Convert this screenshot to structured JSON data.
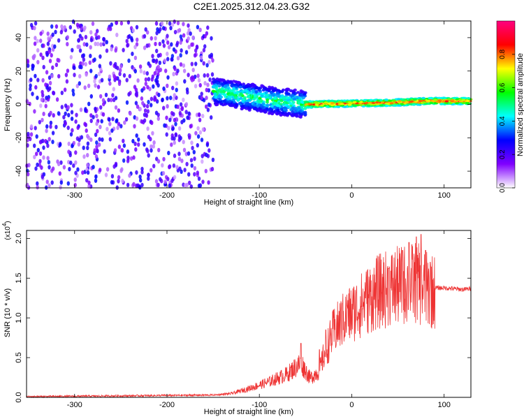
{
  "figure": {
    "title": "C2E1.2025.312.04.23.G32"
  },
  "chart_data": [
    {
      "type": "heatmap",
      "title": "",
      "xlabel": "Height of straight line (km)",
      "ylabel": "Frequency (Hz)",
      "xlim": [
        -352,
        129
      ],
      "ylim": [
        -50,
        50
      ],
      "x_ticks": [
        -300,
        -200,
        -100,
        0,
        100
      ],
      "y_ticks": [
        -40,
        -20,
        0,
        20,
        40
      ],
      "colorbar": {
        "label": "Normalized spectral amplitude",
        "range": [
          0,
          1
        ],
        "ticks": [
          "0.0",
          "0.2",
          "0.4",
          "0.6",
          "0.8"
        ],
        "colors": [
          "#ffffff",
          "#8000ff",
          "#0000ff",
          "#00ffff",
          "#00ff00",
          "#ffff00",
          "#ff0000",
          "#ff0080"
        ]
      },
      "regions": [
        {
          "x_range": [
            -352,
            -150
          ],
          "description_value": "noise",
          "amplitude": [
            0.05,
            0.3
          ],
          "freq_range": [
            -50,
            50
          ]
        },
        {
          "x_range": [
            -150,
            -50
          ],
          "amplitude": [
            0.2,
            0.6
          ],
          "center_freq": [
            8,
            5,
            2,
            0
          ],
          "spread_hz": 8
        },
        {
          "x_range": [
            -50,
            129
          ],
          "amplitude": [
            0.4,
            0.95
          ],
          "center_freq": [
            0,
            0.5,
            1,
            2,
            2
          ],
          "spread_hz": 2
        }
      ],
      "grid": false
    },
    {
      "type": "line",
      "title": "",
      "xlabel": "Height of straight line (km)",
      "ylabel": "SNR (10 * v/v)",
      "y_multiplier": "(x10",
      "y_multiplier_exp": "4",
      "xlim": [
        -352,
        129
      ],
      "ylim": [
        0,
        2.1
      ],
      "x_ticks": [
        -300,
        -200,
        -100,
        0,
        100
      ],
      "y_ticks": [
        "0.0",
        "0.5",
        "1.0",
        "1.5",
        "2.0"
      ],
      "color": "#ee3333",
      "envelope": {
        "x": [
          -352,
          -250,
          -150,
          -130,
          -110,
          -90,
          -70,
          -55,
          -50,
          -45,
          -35,
          -30,
          -20,
          -10,
          0,
          10,
          20,
          30,
          40,
          50,
          60,
          70,
          75,
          80,
          90,
          100,
          110,
          120,
          129
        ],
        "y": [
          0.01,
          0.02,
          0.03,
          0.05,
          0.12,
          0.2,
          0.3,
          0.45,
          0.35,
          0.25,
          0.35,
          0.55,
          0.85,
          1.0,
          1.1,
          1.2,
          1.3,
          1.38,
          1.42,
          1.45,
          1.48,
          1.5,
          1.45,
          1.4,
          1.38,
          1.38,
          1.37,
          1.36,
          1.37
        ]
      },
      "spikes": [
        {
          "x": -55,
          "y": 0.68
        },
        {
          "x": -35,
          "y": 0.6
        },
        {
          "x": -28,
          "y": 0.85
        },
        {
          "x": -10,
          "y": 1.18
        },
        {
          "x": -5,
          "y": 1.15
        },
        {
          "x": 15,
          "y": 1.25
        },
        {
          "x": 40,
          "y": 1.62
        },
        {
          "x": 55,
          "y": 1.85
        },
        {
          "x": 62,
          "y": 1.95
        },
        {
          "x": 70,
          "y": 2.02
        },
        {
          "x": 75,
          "y": 2.05
        },
        {
          "x": 80,
          "y": 1.85
        },
        {
          "x": 85,
          "y": 1.7
        }
      ],
      "grid": false
    }
  ]
}
